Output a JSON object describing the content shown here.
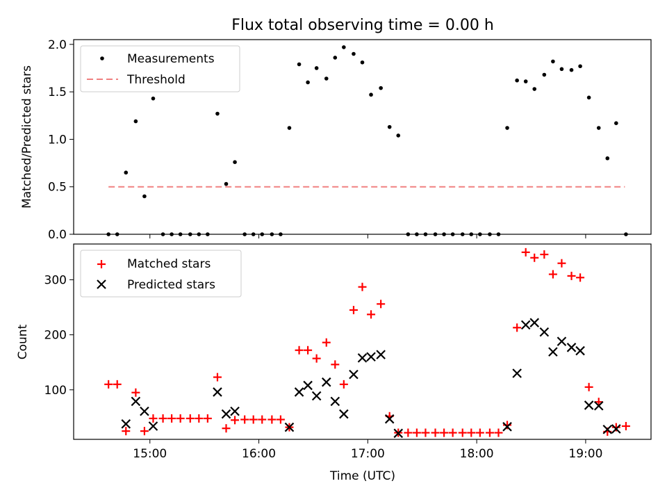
{
  "chart_data": {
    "type": "scatter",
    "title": "Flux total observing time = 0.00 h",
    "xlabel": "Time (UTC)",
    "x_tick_labels": [
      "15:00",
      "16:00",
      "17:00",
      "18:00",
      "19:00"
    ],
    "x_tick_values_h": [
      15,
      16,
      17,
      18,
      19
    ],
    "xlim_h": [
      14.3,
      19.6
    ],
    "panels": [
      {
        "ylabel": "Matched/Predicted stars",
        "ylim": [
          0,
          2.05
        ],
        "y_tick_labels": [
          "0.0",
          "0.5",
          "1.0",
          "1.5",
          "2.0"
        ],
        "y_tick_values": [
          0,
          0.5,
          1.0,
          1.5,
          2.0
        ],
        "legend_position": "top-left",
        "threshold": {
          "name": "Threshold",
          "value": 0.5,
          "x_range_h": [
            14.62,
            19.36
          ],
          "color": "#f08080"
        },
        "series": [
          {
            "name": "Measurements",
            "marker": "dot",
            "color": "#000000",
            "points": [
              [
                14.62,
                0
              ],
              [
                14.7,
                0
              ],
              [
                14.78,
                0.65
              ],
              [
                14.87,
                1.19
              ],
              [
                14.95,
                0.4
              ],
              [
                15.03,
                1.43
              ],
              [
                15.12,
                0
              ],
              [
                15.2,
                0
              ],
              [
                15.28,
                0
              ],
              [
                15.37,
                0
              ],
              [
                15.45,
                0
              ],
              [
                15.53,
                0
              ],
              [
                15.62,
                1.27
              ],
              [
                15.7,
                0.53
              ],
              [
                15.78,
                0.76
              ],
              [
                15.87,
                0
              ],
              [
                15.95,
                0
              ],
              [
                16.03,
                0
              ],
              [
                16.12,
                0
              ],
              [
                16.2,
                0
              ],
              [
                16.28,
                1.12
              ],
              [
                16.37,
                1.79
              ],
              [
                16.45,
                1.6
              ],
              [
                16.53,
                1.75
              ],
              [
                16.62,
                1.64
              ],
              [
                16.7,
                1.86
              ],
              [
                16.78,
                1.97
              ],
              [
                16.87,
                1.9
              ],
              [
                16.95,
                1.81
              ],
              [
                17.03,
                1.47
              ],
              [
                17.12,
                1.54
              ],
              [
                17.2,
                1.13
              ],
              [
                17.28,
                1.04
              ],
              [
                17.37,
                0
              ],
              [
                17.45,
                0
              ],
              [
                17.53,
                0
              ],
              [
                17.62,
                0
              ],
              [
                17.7,
                0
              ],
              [
                17.78,
                0
              ],
              [
                17.87,
                0
              ],
              [
                17.95,
                0
              ],
              [
                18.03,
                0
              ],
              [
                18.12,
                0
              ],
              [
                18.2,
                0
              ],
              [
                18.28,
                1.12
              ],
              [
                18.37,
                1.62
              ],
              [
                18.45,
                1.61
              ],
              [
                18.53,
                1.53
              ],
              [
                18.62,
                1.68
              ],
              [
                18.7,
                1.82
              ],
              [
                18.78,
                1.74
              ],
              [
                18.87,
                1.73
              ],
              [
                18.95,
                1.77
              ],
              [
                19.03,
                1.44
              ],
              [
                19.12,
                1.12
              ],
              [
                19.2,
                0.8
              ],
              [
                19.28,
                1.17
              ],
              [
                19.37,
                0
              ]
            ]
          }
        ]
      },
      {
        "ylabel": "Count",
        "ylim": [
          10,
          365
        ],
        "y_tick_labels": [
          "100",
          "200",
          "300"
        ],
        "y_tick_values": [
          100,
          200,
          300
        ],
        "legend_position": "top-left",
        "series": [
          {
            "name": "Matched stars",
            "marker": "plus",
            "color": "#ff0000",
            "points": [
              [
                14.62,
                110
              ],
              [
                14.7,
                110
              ],
              [
                14.78,
                25
              ],
              [
                14.87,
                95
              ],
              [
                14.95,
                25
              ],
              [
                15.03,
                48
              ],
              [
                15.12,
                48
              ],
              [
                15.2,
                48
              ],
              [
                15.28,
                48
              ],
              [
                15.37,
                48
              ],
              [
                15.45,
                48
              ],
              [
                15.53,
                48
              ],
              [
                15.62,
                123
              ],
              [
                15.7,
                30
              ],
              [
                15.78,
                45
              ],
              [
                15.87,
                46
              ],
              [
                15.95,
                46
              ],
              [
                16.03,
                46
              ],
              [
                16.12,
                46
              ],
              [
                16.2,
                46
              ],
              [
                16.28,
                32
              ],
              [
                16.37,
                172
              ],
              [
                16.45,
                172
              ],
              [
                16.53,
                157
              ],
              [
                16.62,
                186
              ],
              [
                16.7,
                146
              ],
              [
                16.78,
                110
              ],
              [
                16.87,
                245
              ],
              [
                16.95,
                287
              ],
              [
                17.03,
                237
              ],
              [
                17.12,
                256
              ],
              [
                17.2,
                52
              ],
              [
                17.28,
                22
              ],
              [
                17.37,
                22
              ],
              [
                17.45,
                22
              ],
              [
                17.53,
                22
              ],
              [
                17.62,
                22
              ],
              [
                17.7,
                22
              ],
              [
                17.78,
                22
              ],
              [
                17.87,
                22
              ],
              [
                17.95,
                22
              ],
              [
                18.03,
                22
              ],
              [
                18.12,
                22
              ],
              [
                18.2,
                22
              ],
              [
                18.28,
                36
              ],
              [
                18.37,
                213
              ],
              [
                18.45,
                350
              ],
              [
                18.53,
                340
              ],
              [
                18.62,
                346
              ],
              [
                18.7,
                310
              ],
              [
                18.78,
                330
              ],
              [
                18.87,
                307
              ],
              [
                18.95,
                304
              ],
              [
                19.03,
                105
              ],
              [
                19.12,
                78
              ],
              [
                19.2,
                24
              ],
              [
                19.28,
                32
              ],
              [
                19.37,
                34
              ]
            ]
          },
          {
            "name": "Predicted stars",
            "marker": "x",
            "color": "#000000",
            "points": [
              [
                14.78,
                38
              ],
              [
                14.87,
                79
              ],
              [
                14.95,
                61
              ],
              [
                15.03,
                34
              ],
              [
                15.62,
                96
              ],
              [
                15.7,
                56
              ],
              [
                15.78,
                61
              ],
              [
                16.28,
                32
              ],
              [
                16.37,
                96
              ],
              [
                16.45,
                108
              ],
              [
                16.53,
                89
              ],
              [
                16.62,
                114
              ],
              [
                16.7,
                79
              ],
              [
                16.78,
                56
              ],
              [
                16.87,
                128
              ],
              [
                16.95,
                158
              ],
              [
                17.03,
                160
              ],
              [
                17.12,
                164
              ],
              [
                17.2,
                47
              ],
              [
                17.28,
                21
              ],
              [
                18.28,
                33
              ],
              [
                18.37,
                130
              ],
              [
                18.45,
                218
              ],
              [
                18.53,
                222
              ],
              [
                18.62,
                205
              ],
              [
                18.7,
                169
              ],
              [
                18.78,
                188
              ],
              [
                18.87,
                177
              ],
              [
                18.95,
                171
              ],
              [
                19.03,
                72
              ],
              [
                19.12,
                71
              ],
              [
                19.2,
                28
              ],
              [
                19.28,
                29
              ]
            ]
          }
        ]
      }
    ]
  }
}
